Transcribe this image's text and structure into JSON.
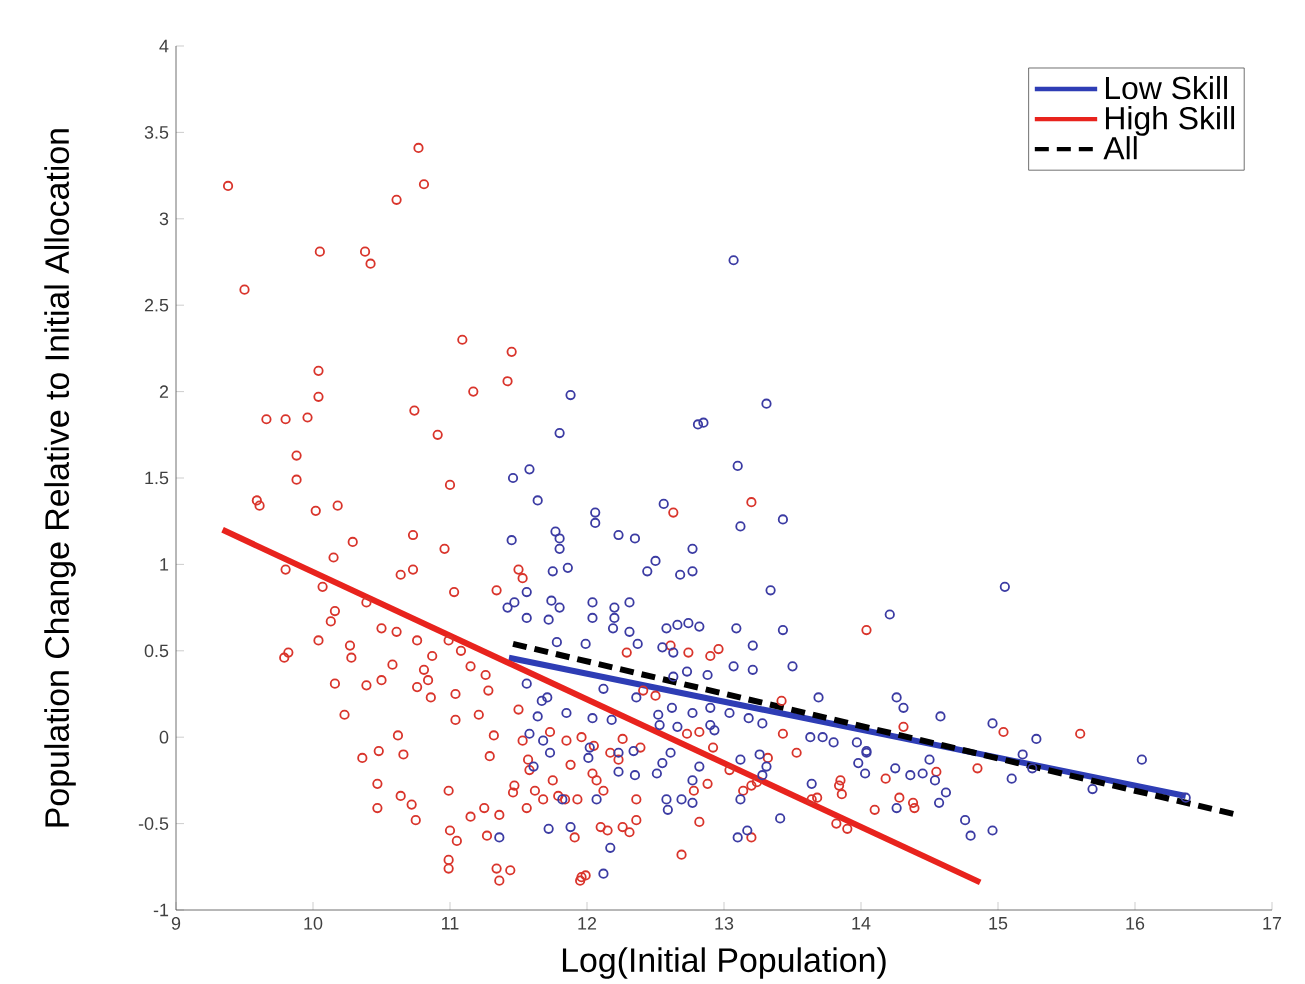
{
  "chart_data": {
    "type": "scatter",
    "xlabel": "Log(Initial Population)",
    "ylabel": "Population Change Relative to Initial Allocation",
    "xlim": [
      9,
      17
    ],
    "ylim": [
      -1,
      4
    ],
    "xticks": [
      9,
      10,
      11,
      12,
      13,
      14,
      15,
      16,
      17
    ],
    "yticks": [
      -1,
      -0.5,
      0,
      0.5,
      1,
      1.5,
      2,
      2.5,
      3,
      3.5,
      4
    ],
    "legend": "top right",
    "grid": false,
    "series": [
      {
        "marker": "circle",
        "color": "#d9342b",
        "x": [
          9.38,
          9.5,
          10.77,
          10.81,
          10.61,
          10.05,
          10.38,
          10.42,
          11.09,
          11.17,
          11.45,
          11.42,
          10.04,
          10.04,
          9.96,
          9.66,
          9.8,
          10.74,
          10.91,
          9.88,
          9.88,
          11.0,
          9.59,
          9.61,
          10.02,
          10.18,
          10.29,
          10.73,
          10.96,
          9.8,
          10.15,
          10.64,
          10.73,
          11.03,
          10.07,
          11.34,
          11.5,
          11.53,
          10.13,
          10.16,
          10.39,
          10.5,
          10.61,
          9.79,
          9.82,
          10.04,
          10.27,
          10.28,
          10.76,
          10.81,
          10.87,
          10.99,
          11.08,
          11.15,
          10.16,
          10.23,
          10.39,
          10.5,
          10.58,
          10.76,
          10.84,
          10.86,
          11.04,
          11.04,
          11.21,
          11.26,
          11.28,
          10.36,
          10.48,
          10.62,
          10.47,
          10.66,
          10.47,
          10.64,
          10.72,
          10.75,
          10.99,
          11.0,
          10.99,
          10.99,
          11.05,
          11.15,
          11.25,
          11.27,
          11.32,
          11.29,
          11.36,
          11.34,
          11.44,
          11.36,
          11.47,
          11.5,
          11.53,
          11.57,
          11.58,
          11.62,
          11.68,
          11.75,
          11.79,
          11.84,
          11.93,
          11.95,
          11.99,
          11.85,
          11.88,
          12.05,
          12.12,
          12.23,
          12.1,
          12.31,
          12.36,
          12.41,
          12.61,
          12.63,
          12.74,
          12.9,
          12.69,
          12.78,
          13.04,
          13.2,
          13.2,
          13.42,
          13.64,
          13.84,
          14.04,
          14.1,
          14.28,
          14.38,
          14.31,
          14.85,
          15.04,
          15.6,
          14.55,
          14.18,
          14.39,
          12.29,
          12.96,
          12.5,
          12.73,
          12.82,
          12.92,
          13.43,
          13.53,
          13.32,
          13.85,
          13.86,
          13.68,
          13.82,
          13.9,
          13.2,
          12.82,
          12.15,
          12.26,
          11.91,
          11.96,
          12.36,
          11.96,
          11.46,
          11.56,
          11.73,
          12.17,
          12.26,
          12.39,
          12.04,
          12.07,
          12.88,
          13.14,
          13.24
        ],
        "values": [
          3.19,
          2.59,
          3.41,
          3.2,
          3.11,
          2.81,
          2.81,
          2.74,
          2.3,
          2.0,
          2.23,
          2.06,
          2.12,
          1.97,
          1.85,
          1.84,
          1.84,
          1.89,
          1.75,
          1.63,
          1.49,
          1.46,
          1.37,
          1.34,
          1.31,
          1.34,
          1.13,
          1.17,
          1.09,
          0.97,
          1.04,
          0.94,
          0.97,
          0.84,
          0.87,
          0.85,
          0.97,
          0.92,
          0.67,
          0.73,
          0.78,
          0.63,
          0.61,
          0.46,
          0.49,
          0.56,
          0.53,
          0.46,
          0.56,
          0.39,
          0.47,
          0.56,
          0.5,
          0.41,
          0.31,
          0.13,
          0.3,
          0.33,
          0.42,
          0.29,
          0.33,
          0.23,
          0.25,
          0.1,
          0.13,
          0.36,
          0.27,
          -0.12,
          -0.08,
          0.01,
          -0.27,
          -0.1,
          -0.41,
          -0.34,
          -0.39,
          -0.48,
          -0.31,
          -0.54,
          -0.71,
          -0.76,
          -0.6,
          -0.46,
          -0.41,
          -0.57,
          0.01,
          -0.11,
          -0.83,
          -0.76,
          -0.77,
          -0.45,
          -0.28,
          0.16,
          -0.02,
          -0.13,
          -0.19,
          -0.31,
          -0.36,
          -0.25,
          -0.34,
          -0.36,
          -0.36,
          -0.83,
          -0.8,
          -0.02,
          -0.16,
          -0.05,
          -0.31,
          -0.13,
          -0.52,
          -0.55,
          -0.48,
          0.27,
          0.53,
          1.3,
          0.49,
          0.47,
          -0.68,
          -0.31,
          -0.19,
          1.36,
          -0.28,
          0.21,
          -0.36,
          -0.28,
          0.62,
          -0.42,
          -0.35,
          -0.38,
          0.06,
          -0.18,
          0.03,
          0.02,
          -0.2,
          -0.24,
          -0.41,
          0.49,
          0.51,
          0.24,
          0.02,
          0.03,
          -0.06,
          0.02,
          -0.09,
          -0.12,
          -0.25,
          -0.33,
          -0.35,
          -0.5,
          -0.53,
          -0.58,
          -0.49,
          -0.54,
          -0.52,
          -0.58,
          -0.81,
          -0.36,
          0.0,
          -0.32,
          -0.41,
          0.03,
          -0.09,
          -0.01,
          -0.06,
          -0.21,
          -0.25,
          -0.27,
          -0.31,
          -0.26
        ]
      },
      {
        "marker": "circle",
        "color": "#3b3ba3",
        "x": [
          13.07,
          11.88,
          11.8,
          11.46,
          11.58,
          11.64,
          11.45,
          12.06,
          12.06,
          11.77,
          11.8,
          11.8,
          12.23,
          12.35,
          12.77,
          12.5,
          12.44,
          12.68,
          12.77,
          11.75,
          11.86,
          13.34,
          12.81,
          12.85,
          13.31,
          13.1,
          13.12,
          13.43,
          12.56,
          11.56,
          11.42,
          11.47,
          11.74,
          11.8,
          12.04,
          12.04,
          12.2,
          12.2,
          12.31,
          11.56,
          11.72,
          12.19,
          12.58,
          12.66,
          12.74,
          12.82,
          13.09,
          13.43,
          13.21,
          13.07,
          13.21,
          13.5,
          12.55,
          12.63,
          12.37,
          12.31,
          11.99,
          11.78,
          12.12,
          12.36,
          12.63,
          12.73,
          12.88,
          12.62,
          12.52,
          12.53,
          12.66,
          12.77,
          12.9,
          13.04,
          13.18,
          13.28,
          13.69,
          13.63,
          13.72,
          13.8,
          13.97,
          14.04,
          13.98,
          14.03,
          13.64,
          13.41,
          13.12,
          13.1,
          13.17,
          13.26,
          13.31,
          13.28,
          13.12,
          12.93,
          12.9,
          12.82,
          12.77,
          12.69,
          12.77,
          12.58,
          12.59,
          12.51,
          12.55,
          12.61,
          12.34,
          12.23,
          12.23,
          12.35,
          12.01,
          12.02,
          12.17,
          12.12,
          11.88,
          11.72,
          11.61,
          11.68,
          11.58,
          11.73,
          11.64,
          11.67,
          11.71,
          11.85,
          12.04,
          12.18,
          11.56,
          11.36,
          11.82,
          12.07,
          15.05,
          14.21,
          14.26,
          14.31,
          14.58,
          14.96,
          15.28,
          16.05,
          14.04,
          14.25,
          14.36,
          14.45,
          14.5,
          14.54,
          14.62,
          14.57,
          14.26,
          14.76,
          14.8,
          14.96,
          15.1,
          15.18,
          15.25,
          15.69,
          16.37
        ],
        "values": [
          2.76,
          1.98,
          1.76,
          1.5,
          1.55,
          1.37,
          1.14,
          1.3,
          1.24,
          1.19,
          1.15,
          1.09,
          1.17,
          1.15,
          1.09,
          1.02,
          0.96,
          0.94,
          0.96,
          0.96,
          0.98,
          0.85,
          1.81,
          1.82,
          1.93,
          1.57,
          1.22,
          1.26,
          1.35,
          0.84,
          0.75,
          0.78,
          0.79,
          0.75,
          0.78,
          0.69,
          0.75,
          0.69,
          0.78,
          0.69,
          0.68,
          0.63,
          0.63,
          0.65,
          0.66,
          0.64,
          0.63,
          0.62,
          0.53,
          0.41,
          0.39,
          0.41,
          0.52,
          0.49,
          0.54,
          0.61,
          0.54,
          0.55,
          0.28,
          0.23,
          0.35,
          0.38,
          0.36,
          0.17,
          0.13,
          0.07,
          0.06,
          0.14,
          0.17,
          0.14,
          0.11,
          0.08,
          0.23,
          0.0,
          0.0,
          -0.03,
          -0.03,
          -0.09,
          -0.15,
          -0.21,
          -0.27,
          -0.47,
          -0.36,
          -0.58,
          -0.54,
          -0.1,
          -0.17,
          -0.22,
          -0.13,
          0.04,
          0.07,
          -0.17,
          -0.25,
          -0.36,
          -0.38,
          -0.36,
          -0.42,
          -0.21,
          -0.15,
          -0.09,
          -0.08,
          -0.09,
          -0.2,
          -0.22,
          -0.12,
          -0.06,
          -0.64,
          -0.79,
          -0.52,
          -0.53,
          -0.17,
          -0.02,
          0.02,
          -0.09,
          0.12,
          0.21,
          0.23,
          0.14,
          0.11,
          0.1,
          0.31,
          -0.58,
          -0.36,
          -0.36,
          0.87,
          0.71,
          0.23,
          0.17,
          0.12,
          0.08,
          -0.01,
          -0.13,
          -0.08,
          -0.18,
          -0.22,
          -0.21,
          -0.13,
          -0.25,
          -0.32,
          -0.38,
          -0.41,
          -0.48,
          -0.57,
          -0.54,
          -0.24,
          -0.1,
          -0.18,
          -0.3,
          -0.35
        ]
      },
      {
        "type": "line",
        "name": "Low Skill",
        "marker": "none",
        "line_style": "solid",
        "color": "#2e3db5",
        "x": [
          11.43,
          16.37
        ],
        "values": [
          0.46,
          -0.34
        ]
      },
      {
        "type": "line",
        "name": "High Skill",
        "marker": "none",
        "line_style": "solid",
        "color": "#e8231d",
        "x": [
          9.34,
          14.87
        ],
        "values": [
          1.2,
          -0.84
        ]
      },
      {
        "type": "line",
        "name": "All",
        "marker": "none",
        "line_style": "dashed",
        "color": "#000000",
        "x": [
          11.46,
          16.75
        ],
        "values": [
          0.54,
          -0.45
        ]
      }
    ]
  }
}
